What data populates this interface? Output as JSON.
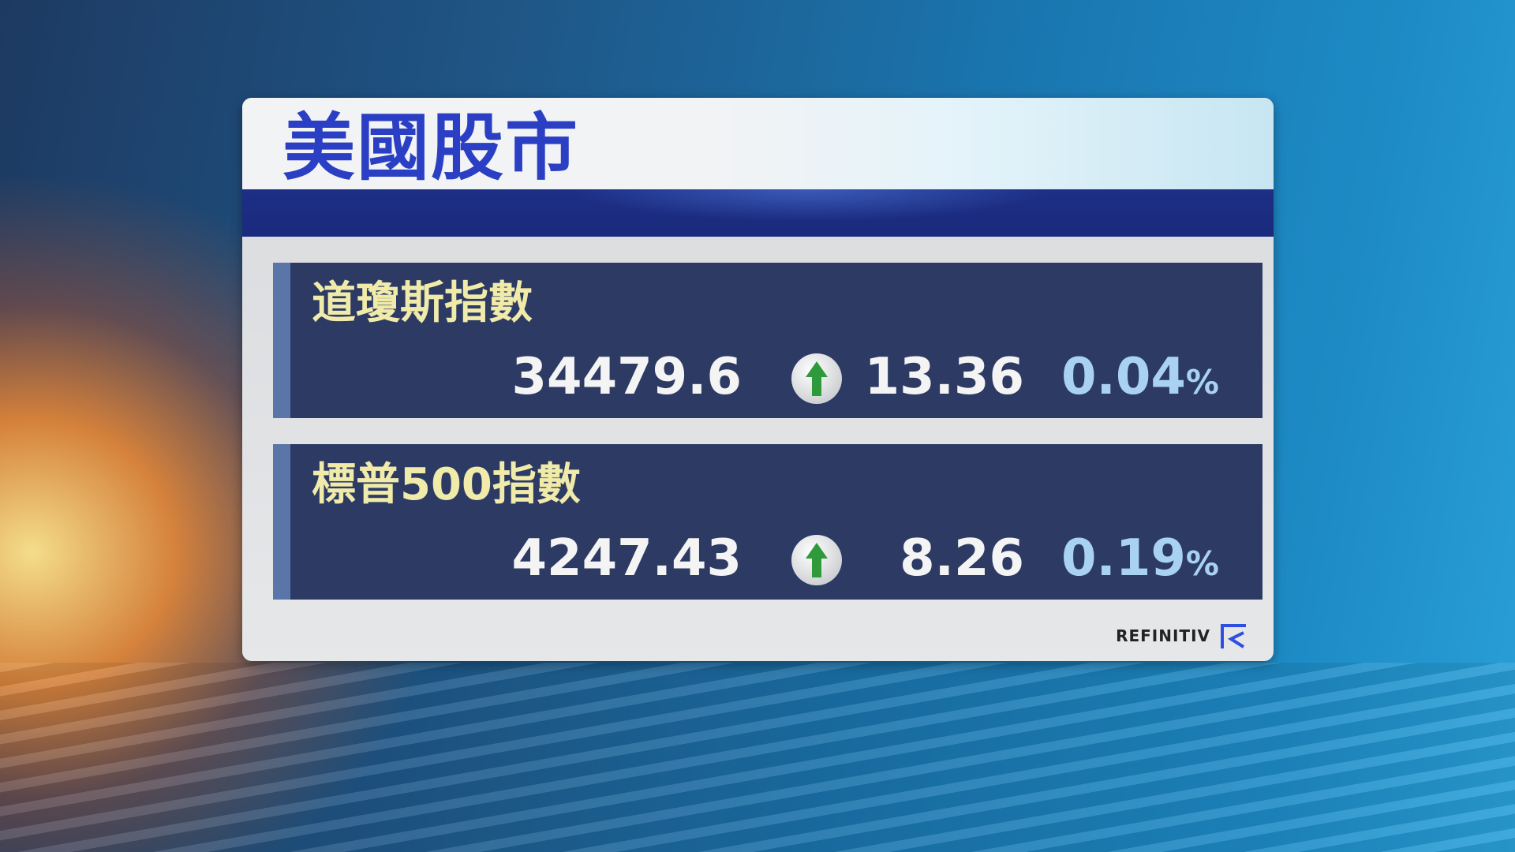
{
  "title": "美國股市",
  "colors": {
    "title": "#2b3fc4",
    "row_bg": "#2c3a64",
    "label": "#f1ebaa",
    "percent": "#a9d2f2",
    "up_arrow": "#2f9a3c"
  },
  "indices": [
    {
      "name": "道瓊斯指數",
      "value": "34479.6",
      "direction": "up",
      "change": "13.36",
      "percent": "0.04",
      "percent_sign": "%"
    },
    {
      "name": "標普500指數",
      "value": "4247.43",
      "direction": "up",
      "change": "8.26",
      "percent": "0.19",
      "percent_sign": "%"
    }
  ],
  "source": {
    "label": "REFINITIV",
    "icon": "refinitiv-logo-icon"
  }
}
